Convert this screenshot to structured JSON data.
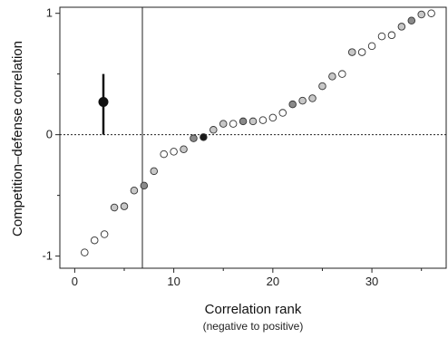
{
  "chart_data": {
    "type": "scatter",
    "title": "",
    "xlabel": "Correlation rank",
    "xlabel_sub": "(negative to positive)",
    "ylabel": "Competition–defense correlation",
    "xlim": [
      -1.5,
      37.5
    ],
    "ylim": [
      -1.1,
      1.05
    ],
    "x_ticks": [
      0,
      10,
      20,
      30
    ],
    "x_tick_labels": [
      "0",
      "10",
      "20",
      "30"
    ],
    "y_ticks": [
      -1,
      0,
      1
    ],
    "y_tick_labels": [
      "-1",
      "0",
      "1"
    ],
    "reference_line_y": 0,
    "grid": false,
    "colors": {
      "white": "#ffffff",
      "light": "#c8c8c8",
      "medium": "#8a8a8a",
      "dark": "#1a1a1a",
      "stroke": "#333333"
    },
    "summary": {
      "mean": 0.27,
      "low": 0.0,
      "high": 0.5
    },
    "points": [
      {
        "x": 1,
        "y": -0.97,
        "fill": "white"
      },
      {
        "x": 2,
        "y": -0.87,
        "fill": "white"
      },
      {
        "x": 3,
        "y": -0.82,
        "fill": "white"
      },
      {
        "x": 4,
        "y": -0.6,
        "fill": "light"
      },
      {
        "x": 5,
        "y": -0.59,
        "fill": "light"
      },
      {
        "x": 6,
        "y": -0.46,
        "fill": "light"
      },
      {
        "x": 7,
        "y": -0.42,
        "fill": "medium"
      },
      {
        "x": 8,
        "y": -0.3,
        "fill": "light"
      },
      {
        "x": 9,
        "y": -0.16,
        "fill": "white"
      },
      {
        "x": 10,
        "y": -0.14,
        "fill": "white"
      },
      {
        "x": 11,
        "y": -0.12,
        "fill": "light"
      },
      {
        "x": 12,
        "y": -0.03,
        "fill": "medium"
      },
      {
        "x": 13,
        "y": -0.02,
        "fill": "dark"
      },
      {
        "x": 14,
        "y": 0.04,
        "fill": "light"
      },
      {
        "x": 15,
        "y": 0.09,
        "fill": "light"
      },
      {
        "x": 16,
        "y": 0.09,
        "fill": "white"
      },
      {
        "x": 17,
        "y": 0.11,
        "fill": "medium"
      },
      {
        "x": 18,
        "y": 0.11,
        "fill": "light"
      },
      {
        "x": 19,
        "y": 0.12,
        "fill": "white"
      },
      {
        "x": 20,
        "y": 0.14,
        "fill": "white"
      },
      {
        "x": 21,
        "y": 0.18,
        "fill": "white"
      },
      {
        "x": 22,
        "y": 0.25,
        "fill": "medium"
      },
      {
        "x": 23,
        "y": 0.28,
        "fill": "light"
      },
      {
        "x": 24,
        "y": 0.3,
        "fill": "light"
      },
      {
        "x": 25,
        "y": 0.4,
        "fill": "light"
      },
      {
        "x": 26,
        "y": 0.48,
        "fill": "light"
      },
      {
        "x": 27,
        "y": 0.5,
        "fill": "white"
      },
      {
        "x": 28,
        "y": 0.68,
        "fill": "light"
      },
      {
        "x": 29,
        "y": 0.68,
        "fill": "white"
      },
      {
        "x": 30,
        "y": 0.73,
        "fill": "white"
      },
      {
        "x": 31,
        "y": 0.81,
        "fill": "white"
      },
      {
        "x": 32,
        "y": 0.82,
        "fill": "white"
      },
      {
        "x": 33,
        "y": 0.89,
        "fill": "light"
      },
      {
        "x": 34,
        "y": 0.94,
        "fill": "medium"
      },
      {
        "x": 35,
        "y": 0.99,
        "fill": "light"
      },
      {
        "x": 36,
        "y": 1.0,
        "fill": "white"
      }
    ]
  }
}
